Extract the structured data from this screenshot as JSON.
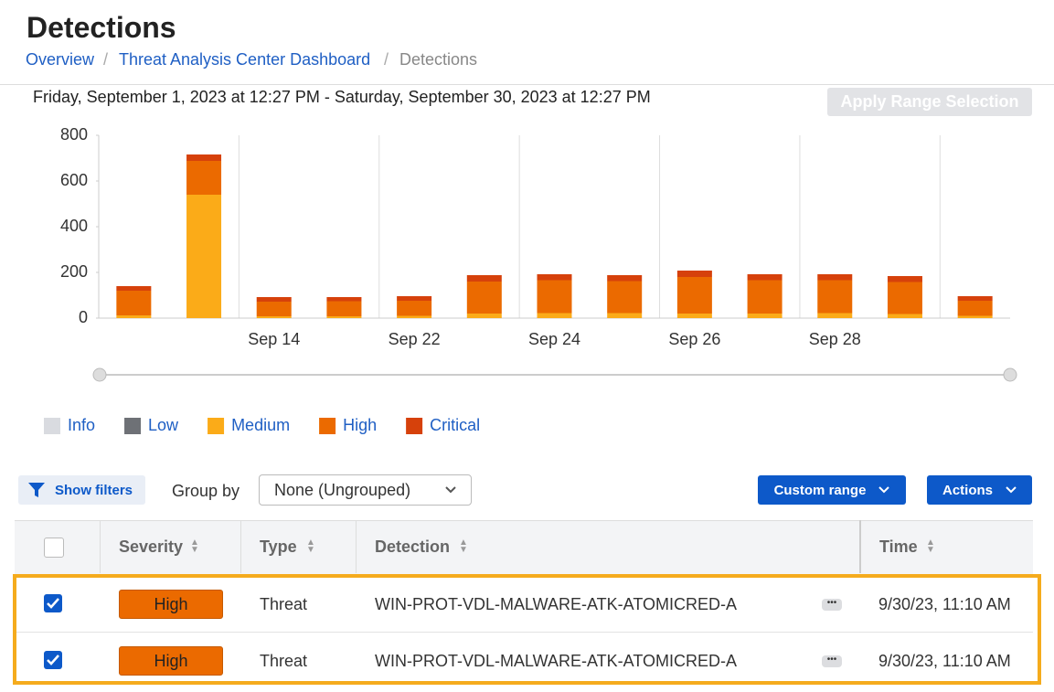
{
  "header": {
    "title": "Detections",
    "breadcrumbs": [
      "Overview",
      "Threat Analysis Center Dashboard",
      "Detections"
    ]
  },
  "date_range": "Friday, September 1, 2023 at 12:27 PM - Saturday, September 30, 2023 at 12:27 PM",
  "apply_button": "Apply Range Selection",
  "chart_data": {
    "type": "bar",
    "stacked": true,
    "categories": [
      null,
      null,
      "Sep 14",
      null,
      "Sep 22",
      null,
      "Sep 24",
      null,
      "Sep 26",
      null,
      "Sep 28",
      null,
      null
    ],
    "series": [
      {
        "name": "Info",
        "color": "#d9dbe0",
        "values": [
          0,
          0,
          0,
          0,
          0,
          0,
          0,
          0,
          0,
          0,
          0,
          0,
          0
        ]
      },
      {
        "name": "Low",
        "color": "#6e7176",
        "values": [
          0,
          0,
          0,
          0,
          0,
          0,
          0,
          0,
          0,
          0,
          0,
          0,
          0
        ]
      },
      {
        "name": "Medium",
        "color": "#fbab18",
        "values": [
          12,
          540,
          8,
          8,
          10,
          20,
          22,
          22,
          20,
          20,
          22,
          18,
          10
        ]
      },
      {
        "name": "High",
        "color": "#eb6a00",
        "values": [
          108,
          148,
          64,
          66,
          66,
          140,
          144,
          140,
          160,
          146,
          144,
          140,
          66
        ]
      },
      {
        "name": "Critical",
        "color": "#d6410b",
        "values": [
          20,
          28,
          20,
          18,
          20,
          28,
          26,
          26,
          28,
          26,
          26,
          26,
          20
        ]
      }
    ],
    "ylim": [
      0,
      800
    ],
    "yticks": [
      0,
      200,
      400,
      600,
      800
    ]
  },
  "toolbar": {
    "show_filters": "Show filters",
    "group_by_label": "Group by",
    "group_by_value": "None (Ungrouped)",
    "custom_range": "Custom range",
    "actions": "Actions"
  },
  "table": {
    "columns": [
      "Severity",
      "Type",
      "Detection",
      "Time"
    ],
    "rows": [
      [
        "High",
        "Threat",
        "WIN-PROT-VDL-MALWARE-ATK-ATOMICRED-A",
        "9/30/23, 11:10 AM"
      ],
      [
        "High",
        "Threat",
        "WIN-PROT-VDL-MALWARE-ATK-ATOMICRED-A",
        "9/30/23, 11:10 AM"
      ]
    ]
  }
}
